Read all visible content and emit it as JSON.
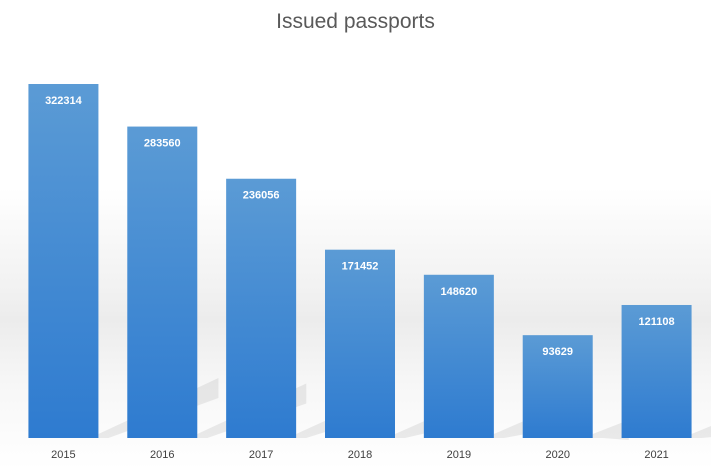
{
  "chart_data": {
    "type": "bar",
    "title": "Issued passports",
    "categories": [
      "2015",
      "2016",
      "2017",
      "2018",
      "2019",
      "2020",
      "2021"
    ],
    "values": [
      322314,
      283560,
      236056,
      171452,
      148620,
      93629,
      121108
    ],
    "xlabel": "",
    "ylabel": "",
    "ylim": [
      0,
      322314
    ],
    "grid": false,
    "legend": "none",
    "data_labels": "inside-top",
    "colors": {
      "bar_top": "#5b9bd5",
      "bar_bottom": "#2e7bd0",
      "label": "#ffffff",
      "tick": "#404040",
      "title": "#595959"
    }
  }
}
